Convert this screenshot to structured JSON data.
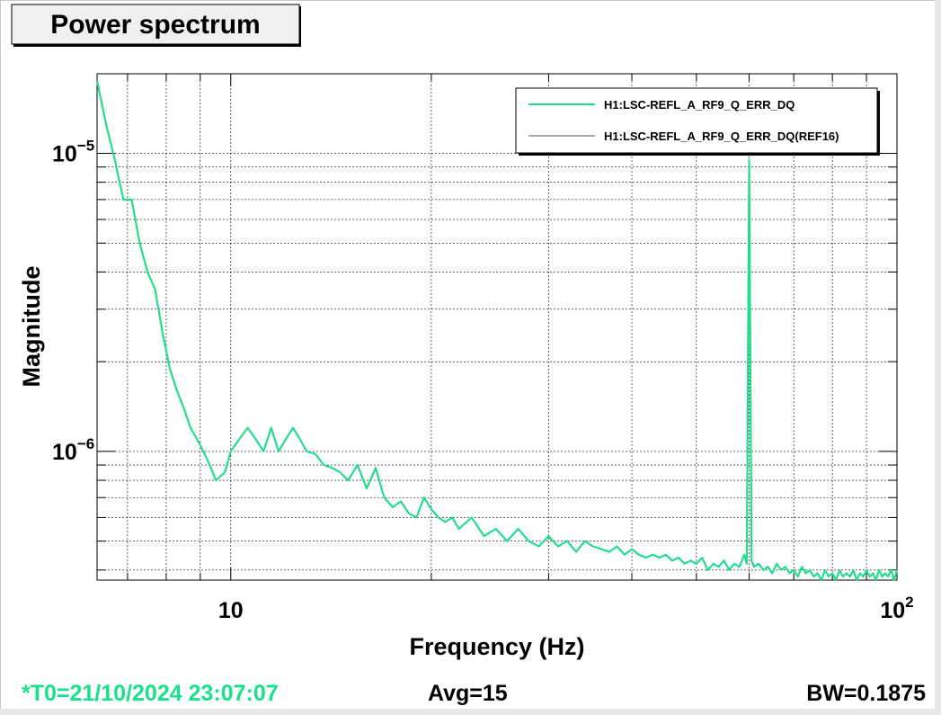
{
  "chart_data": {
    "type": "line",
    "title": "Power spectrum",
    "xlabel": "Frequency (Hz)",
    "ylabel": "Magnitude",
    "x_scale": "log",
    "y_scale": "log",
    "xlim": [
      6.3,
      100
    ],
    "ylim": [
      3.7e-07,
      1.85e-05
    ],
    "grid": true,
    "legend_position": "top-right",
    "x_ticks": [
      {
        "value": 10,
        "base": "10",
        "exp": ""
      },
      {
        "value": 100,
        "base": "10",
        "exp": "2"
      }
    ],
    "y_ticks": [
      {
        "value": 1e-05,
        "base": "10",
        "exp": "−5"
      },
      {
        "value": 1e-06,
        "base": "10",
        "exp": "−6"
      }
    ],
    "series": [
      {
        "name": "H1:LSC-REFL_A_RF9_Q_ERR_DQ",
        "color": "#19e08a",
        "x": [
          6.3,
          6.5,
          6.7,
          6.9,
          7.1,
          7.3,
          7.5,
          7.7,
          7.9,
          8.1,
          8.3,
          8.5,
          8.7,
          8.9,
          9.1,
          9.3,
          9.5,
          9.8,
          10.0,
          10.3,
          10.6,
          10.9,
          11.2,
          11.5,
          11.8,
          12.1,
          12.4,
          12.7,
          13.0,
          13.4,
          13.8,
          14.2,
          14.6,
          15.0,
          15.5,
          16.0,
          16.5,
          17.0,
          17.5,
          18.0,
          18.5,
          19.0,
          19.5,
          20.0,
          20.5,
          21.0,
          21.5,
          22.0,
          23.0,
          24.0,
          25.0,
          26.0,
          27.0,
          28.0,
          29.0,
          30.0,
          31.0,
          32.0,
          33.0,
          34.0,
          35.0,
          36.0,
          37.0,
          38.0,
          39.0,
          40.0,
          41.0,
          42.0,
          43.0,
          44.0,
          45.0,
          46.0,
          47.0,
          48.0,
          49.0,
          50.0,
          51.0,
          52.0,
          53.0,
          54.0,
          55.0,
          56.0,
          57.0,
          58.0,
          59.0,
          59.5,
          60.0,
          60.5,
          61.0,
          62.0,
          63.0,
          64.0,
          65.0,
          66.0,
          67.0,
          68.0,
          69.0,
          70.0,
          71.0,
          72.0,
          73.0,
          74.0,
          75.0,
          76.0,
          77.0,
          78.0,
          79.0,
          80.0,
          81.0,
          82.0,
          83.0,
          84.0,
          85.0,
          86.0,
          87.0,
          88.0,
          89.0,
          90.0,
          91.0,
          92.0,
          93.0,
          94.0,
          95.0,
          96.0,
          97.0,
          98.0,
          99.0,
          100.0
        ],
        "y": [
          1.75e-05,
          1.25e-05,
          9.5e-06,
          7e-06,
          7e-06,
          5e-06,
          4e-06,
          3.5e-06,
          2.5e-06,
          1.9e-06,
          1.6e-06,
          1.4e-06,
          1.2e-06,
          1.1e-06,
          1e-06,
          9e-07,
          8e-07,
          8.5e-07,
          1e-06,
          1.1e-06,
          1.2e-06,
          1.1e-06,
          1e-06,
          1.2e-06,
          1e-06,
          1.1e-06,
          1.2e-06,
          1.1e-06,
          1e-06,
          9.8e-07,
          9e-07,
          8.8e-07,
          8.5e-07,
          8e-07,
          9e-07,
          7.5e-07,
          8.8e-07,
          7e-07,
          6.5e-07,
          6.8e-07,
          6.2e-07,
          6e-07,
          7e-07,
          6.4e-07,
          6e-07,
          5.8e-07,
          6e-07,
          5.5e-07,
          6e-07,
          5.2e-07,
          5.5e-07,
          5e-07,
          5.5e-07,
          5e-07,
          4.8e-07,
          5.2e-07,
          4.8e-07,
          5e-07,
          4.6e-07,
          5e-07,
          4.8e-07,
          4.7e-07,
          4.6e-07,
          4.8e-07,
          4.5e-07,
          4.7e-07,
          4.5e-07,
          4.4e-07,
          4.5e-07,
          4.4e-07,
          4.5e-07,
          4.3e-07,
          4.4e-07,
          4.2e-07,
          4.3e-07,
          4.2e-07,
          4.4e-07,
          4e-07,
          4.2e-07,
          4.1e-07,
          4.3e-07,
          4e-07,
          4.2e-07,
          4.1e-07,
          4.5e-07,
          4.2e-07,
          9.5e-06,
          4.3e-07,
          4.1e-07,
          4.2e-07,
          4e-07,
          4.1e-07,
          3.9e-07,
          4.2e-07,
          4e-07,
          4.1e-07,
          3.9e-07,
          4e-07,
          3.8e-07,
          4.1e-07,
          3.9e-07,
          4e-07,
          3.8e-07,
          3.9e-07,
          3.7e-07,
          4e-07,
          3.8e-07,
          3.9e-07,
          3.7e-07,
          4e-07,
          3.8e-07,
          3.9e-07,
          3.8e-07,
          4e-07,
          3.7e-07,
          3.9e-07,
          3.8e-07,
          4e-07,
          3.8e-07,
          3.9e-07,
          3.7e-07,
          4e-07,
          3.8e-07,
          3.9e-07,
          3.8e-07,
          4e-07,
          3.7e-07,
          4e-07
        ]
      },
      {
        "name": "H1:LSC-REFL_A_RF9_Q_ERR_DQ(REF16)",
        "color": "#a8a8a8",
        "x": [
          6.3,
          6.5,
          6.7,
          6.9,
          7.1,
          7.3,
          7.5,
          7.7,
          7.9,
          8.1,
          8.3,
          8.5,
          8.7,
          8.9,
          9.1,
          9.3,
          9.5,
          9.8,
          10.0,
          10.3,
          10.6,
          10.9,
          11.2,
          11.5,
          11.8,
          12.1,
          12.4,
          12.7,
          13.0,
          13.4,
          13.8,
          14.2,
          14.6,
          15.0,
          15.5,
          16.0,
          16.5,
          17.0,
          17.5,
          18.0,
          18.5,
          19.0,
          19.5,
          20.0,
          20.5,
          21.0,
          21.5,
          22.0,
          23.0,
          24.0,
          25.0,
          26.0,
          27.0,
          28.0,
          29.0,
          30.0,
          31.0,
          32.0,
          33.0,
          34.0,
          35.0,
          36.0,
          37.0,
          38.0,
          39.0,
          40.0,
          41.0,
          42.0,
          43.0,
          44.0,
          45.0,
          46.0,
          47.0,
          48.0,
          49.0,
          50.0,
          51.0,
          52.0,
          53.0,
          54.0,
          55.0,
          56.0,
          57.0,
          58.0,
          59.0,
          59.5,
          60.0,
          60.5,
          61.0,
          62.0,
          63.0,
          64.0,
          65.0,
          66.0,
          67.0,
          68.0,
          69.0,
          70.0,
          71.0,
          72.0,
          73.0,
          74.0,
          75.0,
          76.0,
          77.0,
          78.0,
          79.0,
          80.0,
          81.0,
          82.0,
          83.0,
          84.0,
          85.0,
          86.0,
          87.0,
          88.0,
          89.0,
          90.0,
          91.0,
          92.0,
          93.0,
          94.0,
          95.0,
          96.0,
          97.0,
          98.0,
          99.0,
          100.0
        ],
        "y": [
          1.75e-05,
          1.25e-05,
          9.5e-06,
          7e-06,
          7e-06,
          5e-06,
          4e-06,
          3.5e-06,
          2.5e-06,
          1.9e-06,
          1.6e-06,
          1.4e-06,
          1.2e-06,
          1.1e-06,
          1e-06,
          9e-07,
          8e-07,
          8.5e-07,
          1e-06,
          1.1e-06,
          1.2e-06,
          1.1e-06,
          1e-06,
          1.2e-06,
          1e-06,
          1.1e-06,
          1.2e-06,
          1.1e-06,
          1e-06,
          9.8e-07,
          9e-07,
          8.8e-07,
          8.5e-07,
          8e-07,
          9e-07,
          7.5e-07,
          8.8e-07,
          7e-07,
          6.5e-07,
          6.8e-07,
          6.2e-07,
          6e-07,
          7e-07,
          6.4e-07,
          6e-07,
          5.8e-07,
          6e-07,
          5.5e-07,
          6e-07,
          5.2e-07,
          5.5e-07,
          5e-07,
          5.5e-07,
          5e-07,
          4.8e-07,
          5.2e-07,
          4.8e-07,
          5e-07,
          4.6e-07,
          5e-07,
          4.8e-07,
          4.7e-07,
          4.6e-07,
          4.8e-07,
          4.5e-07,
          4.7e-07,
          4.5e-07,
          4.4e-07,
          4.5e-07,
          4.4e-07,
          4.5e-07,
          4.3e-07,
          4.4e-07,
          4.2e-07,
          4.3e-07,
          4.2e-07,
          4.4e-07,
          4e-07,
          4.2e-07,
          4.1e-07,
          4.3e-07,
          4e-07,
          4.2e-07,
          4.1e-07,
          4.5e-07,
          4.2e-07,
          9.5e-06,
          4.3e-07,
          4.1e-07,
          4.2e-07,
          4e-07,
          4.1e-07,
          3.9e-07,
          4.2e-07,
          4e-07,
          4.1e-07,
          3.9e-07,
          4e-07,
          3.8e-07,
          4.1e-07,
          3.9e-07,
          4e-07,
          3.8e-07,
          3.9e-07,
          3.7e-07,
          4e-07,
          3.8e-07,
          3.9e-07,
          3.7e-07,
          4e-07,
          3.8e-07,
          3.9e-07,
          3.8e-07,
          4e-07,
          3.7e-07,
          3.9e-07,
          3.8e-07,
          4e-07,
          3.8e-07,
          3.9e-07,
          3.7e-07,
          4e-07,
          3.8e-07,
          3.9e-07,
          3.8e-07,
          4e-07,
          3.7e-07,
          4e-07
        ]
      }
    ]
  },
  "footer": {
    "t0": "*T0=21/10/2024 23:07:07",
    "avg": "Avg=15",
    "bw": "BW=0.1875"
  },
  "colors": {
    "t0_text": "#19e08a"
  }
}
